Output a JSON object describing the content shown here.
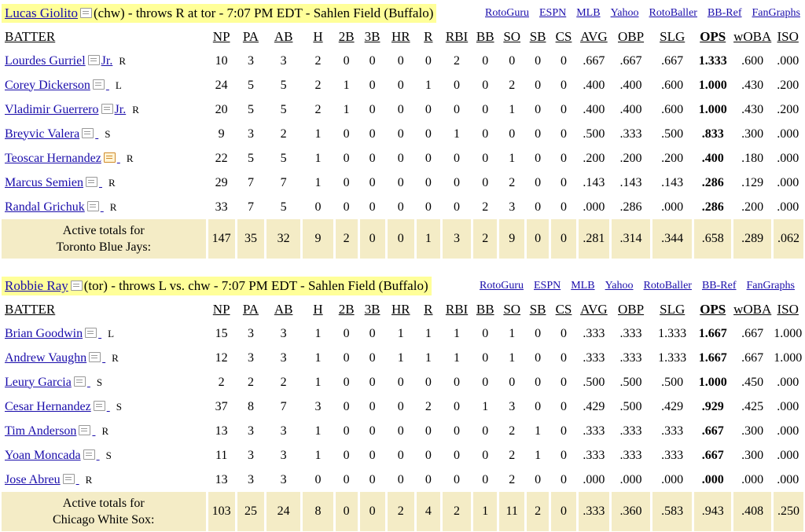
{
  "columns": [
    "BATTER",
    "NP",
    "PA",
    "AB",
    "H",
    "2B",
    "3B",
    "HR",
    "R",
    "RBI",
    "BB",
    "SO",
    "SB",
    "CS",
    "AVG",
    "OBP",
    "SLG",
    "OPS",
    "wOBA",
    "ISO"
  ],
  "matchups": [
    {
      "pitcher_name": "Lucas Giolito",
      "header_text": "(chw) - throws R at tor - 7:07 PM EDT - Sahlen Field (Buffalo)",
      "links": [
        "RotoGuru",
        "ESPN",
        "MLB",
        "Yahoo",
        "RotoBaller",
        "BB-Ref",
        "FanGraphs"
      ],
      "batters": [
        {
          "name": "Lourdes Gurriel",
          "suffix": "Jr.",
          "bats": "R",
          "stats": [
            "10",
            "3",
            "3",
            "2",
            "0",
            "0",
            "0",
            "0",
            "2",
            "0",
            "0",
            "0",
            "0",
            ".667",
            ".667",
            ".667",
            "1.333",
            ".600",
            ".000"
          ]
        },
        {
          "name": "Corey Dickerson",
          "suffix": "",
          "bats": "L",
          "stats": [
            "24",
            "5",
            "5",
            "2",
            "1",
            "0",
            "0",
            "1",
            "0",
            "0",
            "2",
            "0",
            "0",
            ".400",
            ".400",
            ".600",
            "1.000",
            ".430",
            ".200"
          ]
        },
        {
          "name": "Vladimir Guerrero",
          "suffix": "Jr.",
          "bats": "R",
          "stats": [
            "20",
            "5",
            "5",
            "2",
            "1",
            "0",
            "0",
            "0",
            "0",
            "0",
            "1",
            "0",
            "0",
            ".400",
            ".400",
            ".600",
            "1.000",
            ".430",
            ".200"
          ]
        },
        {
          "name": "Breyvic Valera",
          "suffix": "",
          "bats": "S",
          "stats": [
            "9",
            "3",
            "2",
            "1",
            "0",
            "0",
            "0",
            "0",
            "1",
            "0",
            "0",
            "0",
            "0",
            ".500",
            ".333",
            ".500",
            ".833",
            ".300",
            ".000"
          ]
        },
        {
          "name": "Teoscar Hernandez",
          "suffix": "",
          "bats": "R",
          "stats": [
            "22",
            "5",
            "5",
            "1",
            "0",
            "0",
            "0",
            "0",
            "0",
            "0",
            "1",
            "0",
            "0",
            ".200",
            ".200",
            ".200",
            ".400",
            ".180",
            ".000"
          ]
        },
        {
          "name": "Marcus Semien",
          "suffix": "",
          "bats": "R",
          "stats": [
            "29",
            "7",
            "7",
            "1",
            "0",
            "0",
            "0",
            "0",
            "0",
            "0",
            "2",
            "0",
            "0",
            ".143",
            ".143",
            ".143",
            ".286",
            ".129",
            ".000"
          ]
        },
        {
          "name": "Randal Grichuk",
          "suffix": "",
          "bats": "R",
          "stats": [
            "33",
            "7",
            "5",
            "0",
            "0",
            "0",
            "0",
            "0",
            "0",
            "2",
            "3",
            "0",
            "0",
            ".000",
            ".286",
            ".000",
            ".286",
            ".200",
            ".000"
          ]
        }
      ],
      "totals_label_1": "Active totals for",
      "totals_label_2": "Toronto Blue Jays:",
      "totals": [
        "147",
        "35",
        "32",
        "9",
        "2",
        "0",
        "0",
        "1",
        "3",
        "2",
        "9",
        "0",
        "0",
        ".281",
        ".314",
        ".344",
        ".658",
        ".289",
        ".062"
      ]
    },
    {
      "pitcher_name": "Robbie Ray",
      "header_text": "(tor) - throws L vs. chw - 7:07 PM EDT - Sahlen Field (Buffalo)",
      "links": [
        "RotoGuru",
        "ESPN",
        "MLB",
        "Yahoo",
        "RotoBaller",
        "BB-Ref",
        "FanGraphs"
      ],
      "batters": [
        {
          "name": "Brian Goodwin",
          "suffix": "",
          "bats": "L",
          "stats": [
            "15",
            "3",
            "3",
            "1",
            "0",
            "0",
            "1",
            "1",
            "1",
            "0",
            "1",
            "0",
            "0",
            ".333",
            ".333",
            "1.333",
            "1.667",
            ".667",
            "1.000"
          ]
        },
        {
          "name": "Andrew Vaughn",
          "suffix": "",
          "bats": "R",
          "stats": [
            "12",
            "3",
            "3",
            "1",
            "0",
            "0",
            "1",
            "1",
            "1",
            "0",
            "1",
            "0",
            "0",
            ".333",
            ".333",
            "1.333",
            "1.667",
            ".667",
            "1.000"
          ]
        },
        {
          "name": "Leury Garcia",
          "suffix": "",
          "bats": "S",
          "stats": [
            "2",
            "2",
            "2",
            "1",
            "0",
            "0",
            "0",
            "0",
            "0",
            "0",
            "0",
            "0",
            "0",
            ".500",
            ".500",
            ".500",
            "1.000",
            ".450",
            ".000"
          ]
        },
        {
          "name": "Cesar Hernandez",
          "suffix": "",
          "bats": "S",
          "stats": [
            "37",
            "8",
            "7",
            "3",
            "0",
            "0",
            "0",
            "2",
            "0",
            "1",
            "3",
            "0",
            "0",
            ".429",
            ".500",
            ".429",
            ".929",
            ".425",
            ".000"
          ]
        },
        {
          "name": "Tim Anderson",
          "suffix": "",
          "bats": "R",
          "stats": [
            "13",
            "3",
            "3",
            "1",
            "0",
            "0",
            "0",
            "0",
            "0",
            "0",
            "2",
            "1",
            "0",
            ".333",
            ".333",
            ".333",
            ".667",
            ".300",
            ".000"
          ]
        },
        {
          "name": "Yoan Moncada",
          "suffix": "",
          "bats": "S",
          "stats": [
            "11",
            "3",
            "3",
            "1",
            "0",
            "0",
            "0",
            "0",
            "0",
            "0",
            "2",
            "1",
            "0",
            ".333",
            ".333",
            ".333",
            ".667",
            ".300",
            ".000"
          ]
        },
        {
          "name": "Jose Abreu",
          "suffix": "",
          "bats": "R",
          "stats": [
            "13",
            "3",
            "3",
            "0",
            "0",
            "0",
            "0",
            "0",
            "0",
            "0",
            "2",
            "0",
            "0",
            ".000",
            ".000",
            ".000",
            ".000",
            ".000",
            ".000"
          ]
        }
      ],
      "totals_label_1": "Active totals for",
      "totals_label_2": "Chicago White Sox:",
      "totals": [
        "103",
        "25",
        "24",
        "8",
        "0",
        "0",
        "2",
        "4",
        "2",
        "1",
        "11",
        "2",
        "0",
        ".333",
        ".360",
        ".583",
        ".943",
        ".408",
        ".250"
      ]
    }
  ]
}
